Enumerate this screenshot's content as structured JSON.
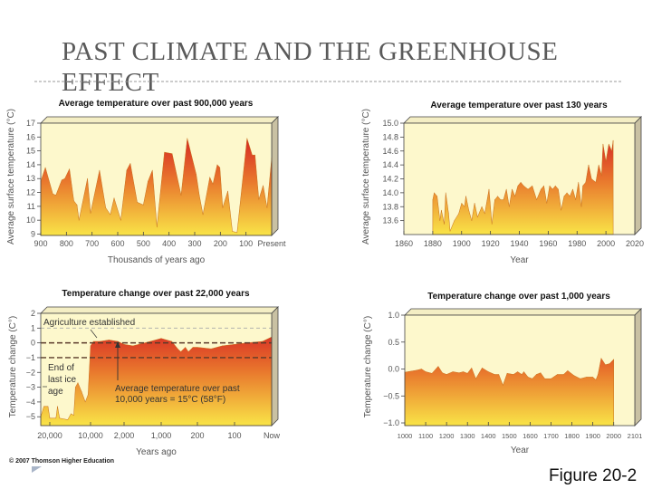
{
  "slide": {
    "title": "PAST CLIMATE AND THE GREENHOUSE EFFECT",
    "figure_label": "Figure 20-2",
    "copyright": "© 2007 Thomson Higher Education"
  },
  "colors": {
    "plot_bg": "#fdf8cc",
    "fill_top": "#d42024",
    "fill_mid": "#e8742c",
    "fill_bottom": "#f9e447",
    "frame_side": "#c9c1a3"
  },
  "chart_data": [
    {
      "type": "area",
      "title": "Average temperature over past 900,000 years",
      "xlabel": "Thousands of years ago",
      "ylabel": "Average surface temperature (°C)",
      "xlim": [
        900,
        0
      ],
      "ylim": [
        8.9,
        17
      ],
      "xticks": [
        {
          "v": 900,
          "label": "900"
        },
        {
          "v": 800,
          "label": "800"
        },
        {
          "v": 700,
          "label": "700"
        },
        {
          "v": 600,
          "label": "600"
        },
        {
          "v": 500,
          "label": "500"
        },
        {
          "v": 400,
          "label": "400"
        },
        {
          "v": 300,
          "label": "300"
        },
        {
          "v": 200,
          "label": "200"
        },
        {
          "v": 100,
          "label": "100"
        },
        {
          "v": 0,
          "label": "Present"
        }
      ],
      "yticks": [
        {
          "v": 17,
          "label": "17"
        },
        {
          "v": 16,
          "label": "16"
        },
        {
          "v": 15,
          "label": "15"
        },
        {
          "v": 14,
          "label": "14"
        },
        {
          "v": 13,
          "label": "13"
        },
        {
          "v": 12,
          "label": "12"
        },
        {
          "v": 11,
          "label": "11"
        },
        {
          "v": 10,
          "label": "10"
        },
        {
          "v": 9,
          "label": "9"
        }
      ],
      "x": [
        900,
        882,
        853,
        841,
        818,
        806,
        788,
        771,
        759,
        751,
        718,
        706,
        671,
        647,
        629,
        614,
        588,
        565,
        551,
        524,
        500,
        482,
        465,
        447,
        418,
        388,
        353,
        329,
        294,
        282,
        268,
        241,
        229,
        212,
        202,
        191,
        171,
        153,
        135,
        96,
        76,
        65,
        50,
        33,
        18,
        0
      ],
      "y": [
        12.8,
        13.8,
        11.9,
        11.8,
        12.9,
        13.0,
        13.7,
        11.4,
        11.1,
        10.0,
        13.0,
        10.5,
        13.6,
        10.9,
        10.4,
        11.6,
        10.0,
        13.6,
        14.1,
        11.3,
        11.1,
        12.8,
        13.6,
        9.5,
        14.9,
        14.8,
        11.8,
        15.9,
        13.3,
        11.8,
        10.4,
        13.1,
        12.6,
        14.0,
        13.8,
        10.9,
        12.1,
        9.2,
        9.1,
        15.9,
        14.7,
        14.7,
        11.5,
        12.5,
        10.9,
        14.5
      ],
      "grid": false
    },
    {
      "type": "area",
      "title": "Average temperature over past 130 years",
      "xlabel": "Year",
      "ylabel": "Average surface temperature (°C)",
      "xlim": [
        1860,
        2020
      ],
      "ylim": [
        13.4,
        15.0
      ],
      "xticks": [
        {
          "v": 1860,
          "label": "1860"
        },
        {
          "v": 1880,
          "label": "1880"
        },
        {
          "v": 1900,
          "label": "1900"
        },
        {
          "v": 1920,
          "label": "1920"
        },
        {
          "v": 1940,
          "label": "1940"
        },
        {
          "v": 1960,
          "label": "1960"
        },
        {
          "v": 1980,
          "label": "1980"
        },
        {
          "v": 2000,
          "label": "2000"
        },
        {
          "v": 2020,
          "label": "2020"
        }
      ],
      "yticks": [
        {
          "v": 15.0,
          "label": "15.0"
        },
        {
          "v": 14.8,
          "label": "14.8"
        },
        {
          "v": 14.6,
          "label": "14.6"
        },
        {
          "v": 14.4,
          "label": "14.4"
        },
        {
          "v": 14.2,
          "label": "14.2"
        },
        {
          "v": 14.0,
          "label": "14.0"
        },
        {
          "v": 13.8,
          "label": "13.8"
        },
        {
          "v": 13.6,
          "label": "13.6"
        }
      ],
      "x": [
        1880,
        1881,
        1883,
        1885,
        1886,
        1888,
        1889,
        1891,
        1892,
        1895,
        1898,
        1900,
        1902,
        1903,
        1905,
        1907,
        1909,
        1911,
        1914,
        1916,
        1919,
        1921,
        1923,
        1925,
        1927,
        1929,
        1931,
        1933,
        1935,
        1937,
        1939,
        1941,
        1943,
        1946,
        1949,
        1952,
        1955,
        1957,
        1959,
        1961,
        1963,
        1965,
        1967,
        1969,
        1971,
        1973,
        1975,
        1977,
        1979,
        1981,
        1983,
        1984,
        1986,
        1988,
        1990,
        1993,
        1995,
        1997,
        1998,
        2000,
        2002,
        2004,
        2005
      ],
      "y": [
        13.9,
        14.0,
        13.95,
        13.6,
        13.75,
        13.55,
        14.0,
        13.7,
        13.45,
        13.6,
        13.7,
        13.85,
        13.8,
        13.95,
        13.75,
        13.6,
        13.85,
        13.65,
        13.8,
        13.7,
        14.05,
        13.55,
        13.9,
        13.95,
        13.9,
        13.9,
        14.05,
        13.8,
        14.05,
        13.95,
        14.1,
        14.15,
        14.1,
        14.05,
        14.1,
        13.9,
        14.05,
        14.1,
        13.85,
        14.1,
        14.05,
        14.1,
        14.05,
        13.75,
        13.95,
        14.0,
        13.95,
        14.05,
        13.9,
        14.15,
        13.8,
        14.1,
        14.15,
        14.4,
        14.2,
        14.15,
        14.4,
        14.25,
        14.7,
        14.45,
        14.7,
        14.6,
        14.75
      ],
      "grid": false
    },
    {
      "type": "area",
      "title": "Temperature change over past 22,000 years",
      "xlabel": "Years ago",
      "ylabel": "Temperature change (C°)",
      "xlim": [
        22000,
        0
      ],
      "ylim": [
        -5.6,
        2
      ],
      "xticks": [
        {
          "v": 20000,
          "label": "20,000"
        },
        {
          "v": 10000,
          "label": "10,000"
        },
        {
          "v": 2000,
          "label": "2,000"
        },
        {
          "v": 1000,
          "label": "1,000"
        },
        {
          "v": 200,
          "label": "200"
        },
        {
          "v": 100,
          "label": "100"
        },
        {
          "v": 0,
          "label": "Now"
        }
      ],
      "yticks": [
        {
          "v": 2,
          "label": "2"
        },
        {
          "v": 1,
          "label": "1"
        },
        {
          "v": 0,
          "label": "0"
        },
        {
          "v": -1,
          "label": "−1"
        },
        {
          "v": -2,
          "label": "−2"
        },
        {
          "v": -3,
          "label": "−3"
        },
        {
          "v": -4,
          "label": "−4"
        },
        {
          "v": -5,
          "label": "−5"
        }
      ],
      "x": [
        22000,
        21300,
        20400,
        20000,
        18500,
        18100,
        17600,
        15600,
        14800,
        14100,
        13700,
        13100,
        12200,
        11300,
        10600,
        10000,
        9300,
        7800,
        5600,
        3500,
        2000,
        1760,
        1440,
        1000,
        767,
        633,
        567,
        467,
        400,
        300,
        200,
        163,
        133,
        100,
        66,
        25,
        0
      ],
      "y": [
        -5.0,
        -4.3,
        -4.3,
        -5.1,
        -5.1,
        -4.3,
        -5.1,
        -5.2,
        -4.8,
        -4.9,
        -3.0,
        -2.7,
        -3.3,
        -4.0,
        -3.5,
        -0.2,
        0.1,
        0.1,
        0.2,
        0.1,
        -0.1,
        -0.2,
        0.0,
        0.3,
        0.1,
        -0.4,
        -0.6,
        -0.3,
        -0.6,
        -0.3,
        -0.3,
        -0.4,
        -0.2,
        -0.1,
        0.0,
        0.1,
        0.4
      ],
      "reference_lines": [
        1,
        0,
        -1
      ],
      "annotations": {
        "agriculture": "Agriculture established",
        "ice_age": [
          "End of",
          "last ice",
          "age"
        ],
        "average": [
          "Average temperature over past",
          "10,000 years = 15°C (58°F)"
        ]
      },
      "grid": false
    },
    {
      "type": "area",
      "title": "Temperature change over past 1,000 years",
      "xlabel": "Year",
      "ylabel": "Temperature change (C°)",
      "xlim": [
        1000,
        2101
      ],
      "ylim": [
        -1.05,
        1.0
      ],
      "xticks": [
        {
          "v": 1000,
          "label": "1000"
        },
        {
          "v": 1100,
          "label": "1100"
        },
        {
          "v": 1200,
          "label": "1200"
        },
        {
          "v": 1300,
          "label": "1300"
        },
        {
          "v": 1400,
          "label": "1400"
        },
        {
          "v": 1500,
          "label": "1500"
        },
        {
          "v": 1600,
          "label": "1600"
        },
        {
          "v": 1700,
          "label": "1700"
        },
        {
          "v": 1800,
          "label": "1800"
        },
        {
          "v": 1900,
          "label": "1900"
        },
        {
          "v": 2000,
          "label": "2000"
        },
        {
          "v": 2101,
          "label": "2101"
        }
      ],
      "yticks": [
        {
          "v": 1.0,
          "label": "1.0"
        },
        {
          "v": 0.5,
          "label": "0.5"
        },
        {
          "v": 0.0,
          "label": "0.0"
        },
        {
          "v": -0.5,
          "label": "−0.5"
        },
        {
          "v": -1.0,
          "label": "−1.0"
        }
      ],
      "x": [
        1000,
        1030,
        1060,
        1080,
        1100,
        1130,
        1160,
        1180,
        1200,
        1230,
        1260,
        1280,
        1300,
        1320,
        1340,
        1370,
        1400,
        1430,
        1450,
        1470,
        1490,
        1520,
        1540,
        1560,
        1570,
        1590,
        1610,
        1630,
        1650,
        1670,
        1700,
        1730,
        1760,
        1780,
        1810,
        1840,
        1870,
        1900,
        1915,
        1925,
        1940,
        1960,
        1980,
        2000
      ],
      "y": [
        -0.06,
        -0.04,
        -0.02,
        0.0,
        -0.05,
        -0.08,
        0.05,
        -0.07,
        -0.1,
        -0.05,
        -0.07,
        -0.05,
        -0.08,
        0.02,
        -0.18,
        0.02,
        -0.05,
        -0.1,
        -0.1,
        -0.3,
        -0.08,
        -0.1,
        -0.05,
        -0.1,
        -0.05,
        -0.15,
        -0.18,
        -0.1,
        -0.07,
        -0.18,
        -0.18,
        -0.1,
        -0.1,
        -0.03,
        -0.12,
        -0.18,
        -0.15,
        -0.15,
        -0.2,
        -0.1,
        0.2,
        0.08,
        0.1,
        0.18
      ],
      "grid": false
    }
  ]
}
